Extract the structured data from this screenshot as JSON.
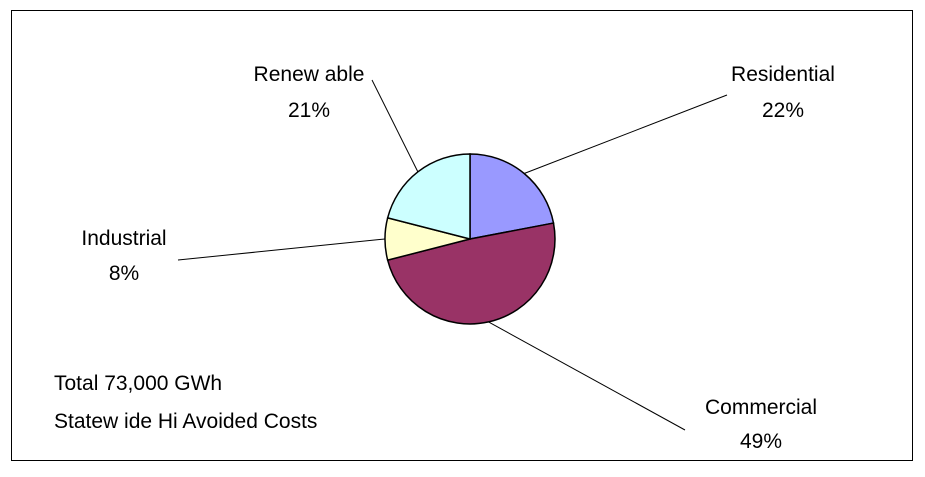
{
  "chart_data": {
    "type": "pie",
    "title": "",
    "slices": [
      {
        "label": "Residential",
        "value": 22,
        "percent_label": "22%",
        "color": "#9999ff"
      },
      {
        "label": "Commercial",
        "value": 49,
        "percent_label": "49%",
        "color": "#993366"
      },
      {
        "label": "Industrial",
        "value": 8,
        "percent_label": "8%",
        "color": "#ffffcc"
      },
      {
        "label": "Renew able",
        "value": 21,
        "percent_label": "21%",
        "color": "#ccffff"
      }
    ],
    "start_angle_deg": 0,
    "direction": "clockwise",
    "annotation": {
      "line1": "Total 73,000 GWh",
      "line2": "Statew ide Hi Avoided Costs"
    },
    "legend": "none"
  }
}
